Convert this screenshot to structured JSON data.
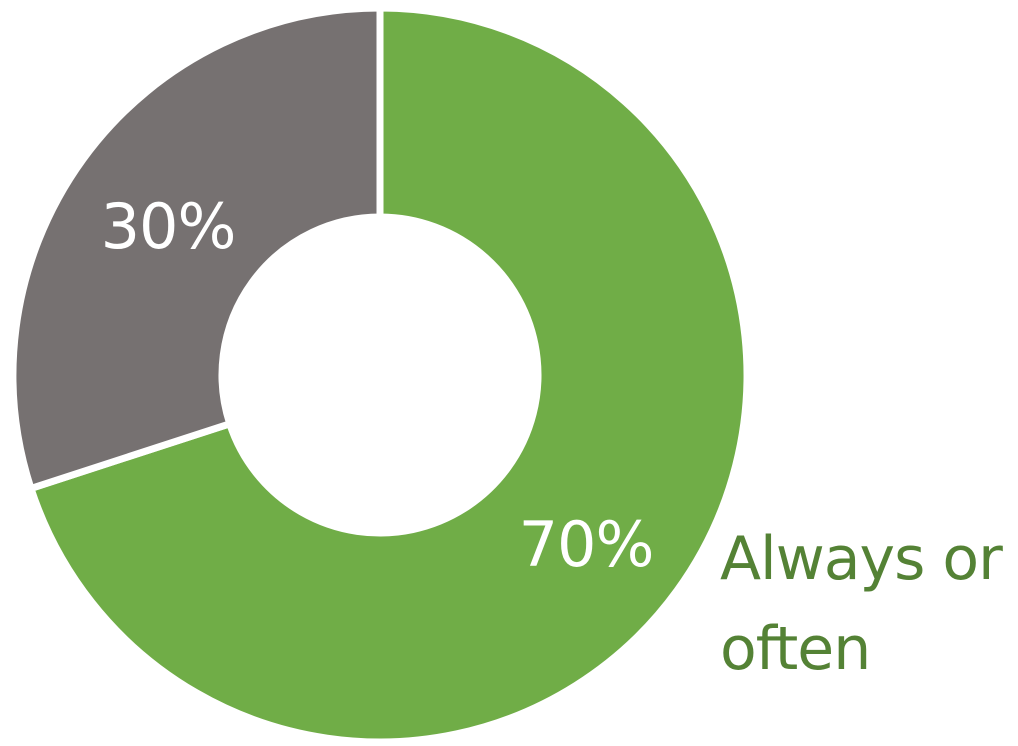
{
  "chart_data": {
    "type": "pie",
    "variant": "donut",
    "slices": [
      {
        "label": "Always or often",
        "value": 70,
        "data_label": "70%",
        "color": "#70ad47"
      },
      {
        "label": "",
        "value": 30,
        "data_label": "30%",
        "color": "#767171"
      }
    ],
    "side_label": "Always or often",
    "side_label_color": "#548235",
    "data_label_color": "#ffffff",
    "separator_color": "#ffffff"
  }
}
